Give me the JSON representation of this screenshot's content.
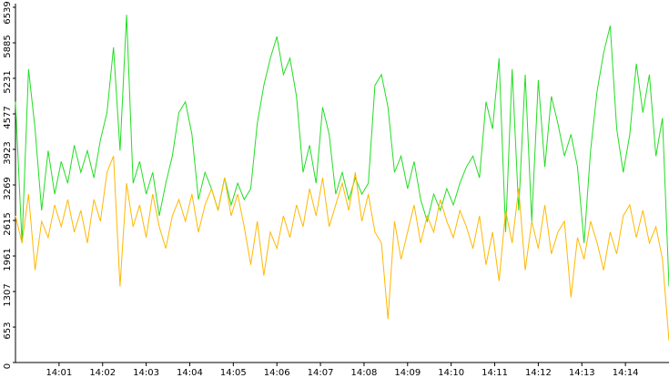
{
  "chart_data": {
    "type": "line",
    "x": [
      0,
      0.15,
      0.3,
      0.45,
      0.6,
      0.75,
      0.9,
      1.05,
      1.2,
      1.35,
      1.5,
      1.65,
      1.8,
      1.95,
      2.1,
      2.25,
      2.4,
      2.55,
      2.7,
      2.85,
      3,
      3.15,
      3.3,
      3.45,
      3.6,
      3.75,
      3.9,
      4.05,
      4.2,
      4.35,
      4.5,
      4.65,
      4.8,
      4.95,
      5.1,
      5.25,
      5.4,
      5.55,
      5.7,
      5.85,
      6,
      6.15,
      6.3,
      6.45,
      6.6,
      6.75,
      6.9,
      7.05,
      7.2,
      7.35,
      7.5,
      7.65,
      7.8,
      7.95,
      8.1,
      8.25,
      8.4,
      8.55,
      8.7,
      8.85,
      9,
      9.15,
      9.3,
      9.45,
      9.6,
      9.75,
      9.9,
      10.05,
      10.2,
      10.35,
      10.5,
      10.65,
      10.8,
      10.95,
      11.1,
      11.25,
      11.4,
      11.55,
      11.7,
      11.85,
      12,
      12.15,
      12.3,
      12.45,
      12.6,
      12.75,
      12.9,
      13.05,
      13.2,
      13.35,
      13.5,
      13.65,
      13.8,
      13.95,
      14.1,
      14.25,
      14.4,
      14.55,
      14.7,
      14.85,
      15
    ],
    "series": [
      {
        "color": "#22dd22",
        "values": [
          4800,
          2200,
          5400,
          4300,
          2800,
          3900,
          3100,
          3700,
          3300,
          4000,
          3500,
          3900,
          3400,
          4100,
          4600,
          5800,
          3900,
          6400,
          3300,
          3700,
          3100,
          3500,
          2700,
          3300,
          3800,
          4600,
          4800,
          4200,
          3000,
          3500,
          3200,
          2800,
          3400,
          2900,
          3300,
          3000,
          3200,
          4400,
          5100,
          5600,
          6000,
          5300,
          5600,
          4900,
          3500,
          4000,
          3300,
          4700,
          4200,
          3100,
          3500,
          3000,
          3400,
          3100,
          3300,
          5100,
          5300,
          4700,
          3500,
          3800,
          3200,
          3700,
          3000,
          2600,
          3100,
          2800,
          3200,
          2900,
          3300,
          3600,
          3800,
          3400,
          4800,
          4300,
          5600,
          2400,
          5400,
          2800,
          5300,
          2600,
          5200,
          3600,
          4900,
          4400,
          3800,
          4200,
          3600,
          2200,
          3900,
          5000,
          5700,
          6200,
          4300,
          3500,
          4200,
          5500,
          4600,
          5300,
          3800,
          4500,
          1400
        ]
      },
      {
        "color": "#ffb800",
        "values": [
          2700,
          2200,
          3100,
          1700,
          2600,
          2300,
          2900,
          2500,
          3000,
          2400,
          2800,
          2200,
          3000,
          2600,
          3500,
          3800,
          1400,
          3300,
          2500,
          2900,
          2300,
          3100,
          2500,
          2100,
          2700,
          3000,
          2600,
          3100,
          2400,
          2900,
          3200,
          2800,
          3400,
          2700,
          3100,
          2500,
          1800,
          2600,
          1600,
          2400,
          2100,
          2700,
          2300,
          2900,
          2500,
          3200,
          2700,
          3400,
          2500,
          2900,
          3300,
          2800,
          3500,
          2600,
          3100,
          2400,
          2200,
          800,
          2600,
          1900,
          2400,
          2900,
          2200,
          2700,
          2400,
          3000,
          2600,
          2300,
          2800,
          2500,
          2100,
          2700,
          1800,
          2400,
          1500,
          2800,
          2200,
          3200,
          1700,
          2600,
          2100,
          2900,
          2000,
          2400,
          2600,
          1200,
          2300,
          1900,
          2600,
          2200,
          1700,
          2400,
          2000,
          2700,
          2900,
          2300,
          2800,
          2200,
          2500,
          1900,
          400
        ]
      }
    ],
    "xlim": [
      0,
      15
    ],
    "xticks": [
      {
        "value": 1,
        "label": "14:01"
      },
      {
        "value": 2,
        "label": "14:02"
      },
      {
        "value": 3,
        "label": "14:03"
      },
      {
        "value": 4,
        "label": "14:04"
      },
      {
        "value": 5,
        "label": "14:05"
      },
      {
        "value": 6,
        "label": "14:06"
      },
      {
        "value": 7,
        "label": "14:07"
      },
      {
        "value": 8,
        "label": "14:08"
      },
      {
        "value": 9,
        "label": "14:09"
      },
      {
        "value": 10,
        "label": "14:10"
      },
      {
        "value": 11,
        "label": "14:11"
      },
      {
        "value": 12,
        "label": "14:12"
      },
      {
        "value": 13,
        "label": "14:13"
      },
      {
        "value": 14,
        "label": "14:14"
      }
    ],
    "ylim": [
      0,
      6539
    ],
    "yticks": [
      0,
      653,
      1307,
      1961,
      2615,
      3269,
      3923,
      4577,
      5231,
      5885,
      6539
    ]
  }
}
